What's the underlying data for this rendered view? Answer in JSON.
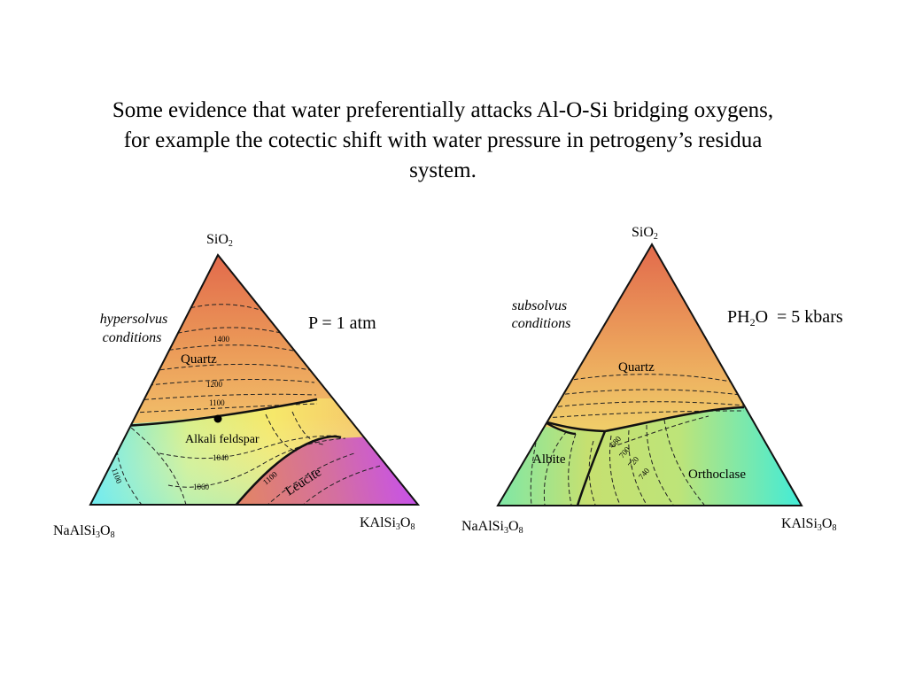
{
  "title": {
    "line1": "Some evidence that water preferentially attacks Al-O-Si bridging oxygens,",
    "line2": "for example the cotectic shift with water pressure in petrogeny’s residua",
    "line3": "system."
  },
  "left_diagram": {
    "apex_top": {
      "base": "SiO",
      "sub": "2"
    },
    "apex_left": {
      "a": "NaAlSi",
      "s1": "3",
      "b": "O",
      "s2": "8"
    },
    "apex_right": {
      "a": "KAlSi",
      "s1": "3",
      "b": "O",
      "s2": "8"
    },
    "conditions_line1": "hypersolvus",
    "conditions_line2": "conditions",
    "pressure": "P = 1 atm",
    "field_quartz": "Quartz",
    "field_feldspar": "Alkali feldspar",
    "field_leucite": "Leucite",
    "isotherms": [
      "1400",
      "1200",
      "1100",
      "1040",
      "1060",
      "1100",
      "1100"
    ]
  },
  "right_diagram": {
    "apex_top": {
      "base": "SiO",
      "sub": "2"
    },
    "apex_left": {
      "a": "NaAlSi",
      "s1": "3",
      "b": "O",
      "s2": "8"
    },
    "apex_right": {
      "a": "KAlSi",
      "s1": "3",
      "b": "O",
      "s2": "8"
    },
    "conditions_line1": "subsolvus",
    "conditions_line2": "conditions",
    "pressure_a": "PH",
    "pressure_sub": "2",
    "pressure_b": "O",
    "pressure_c": "= 5 kbars",
    "field_quartz": "Quartz",
    "field_albite": "Albite",
    "field_orthoclase": "Orthoclase",
    "isotherms": [
      "680",
      "700",
      "720",
      "740"
    ]
  }
}
